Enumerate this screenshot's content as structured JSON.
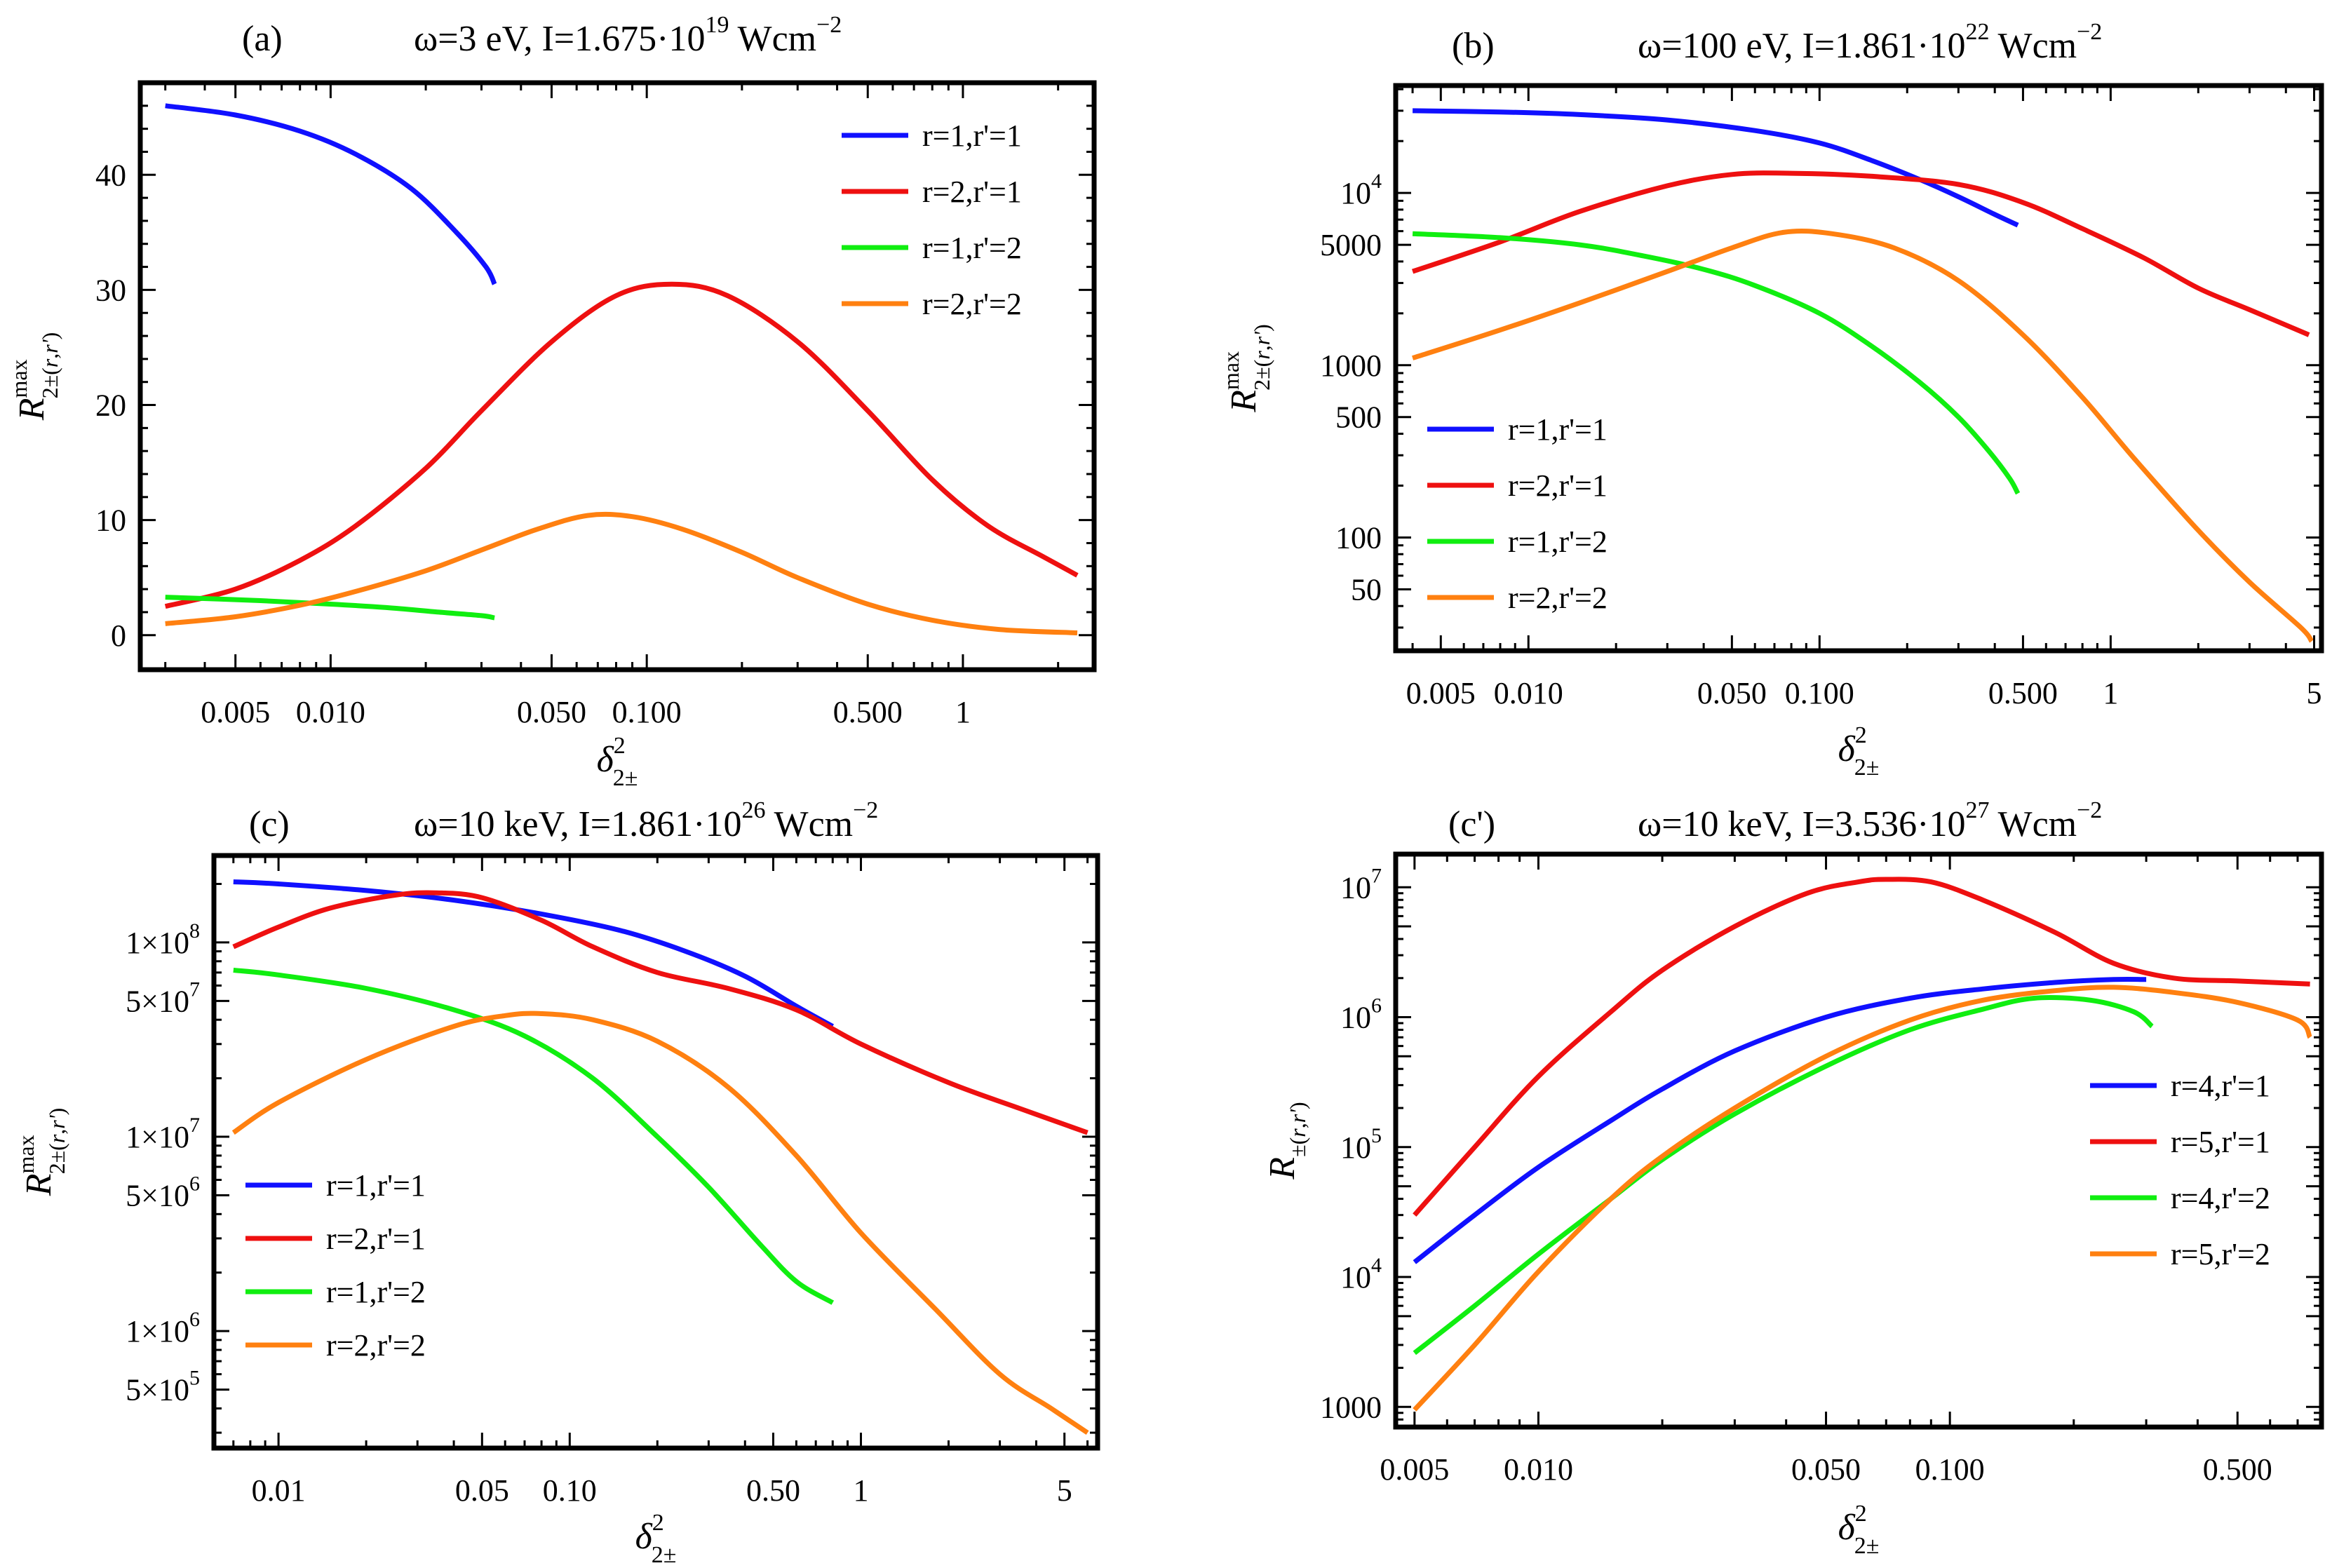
{
  "chart_data": [
    {
      "type": "line",
      "panel": "(a)",
      "title": "ω=3 eV, I=1.675·10^19 Wcm^-2",
      "title_parts": {
        "omega": "ω=3 eV, I=1.675·10",
        "exp": "19",
        "unit": " Wcm",
        "unit_exp": "−2"
      },
      "xlabel": "δ²₂±",
      "ylabel": "R^max_2±(r,r')",
      "xscale": "log",
      "yscale": "linear",
      "xlim": [
        0.0025,
        2.6
      ],
      "ylim": [
        -3,
        48
      ],
      "xticks": [
        {
          "v": 0.005,
          "label": "0.005"
        },
        {
          "v": 0.01,
          "label": "0.010"
        },
        {
          "v": 0.05,
          "label": "0.050"
        },
        {
          "v": 0.1,
          "label": "0.100"
        },
        {
          "v": 0.5,
          "label": "0.500"
        },
        {
          "v": 1,
          "label": "1"
        }
      ],
      "yticks": [
        {
          "v": 0,
          "label": "0"
        },
        {
          "v": 10,
          "label": "10"
        },
        {
          "v": 20,
          "label": "20"
        },
        {
          "v": 30,
          "label": "30"
        },
        {
          "v": 40,
          "label": "40"
        }
      ],
      "legend_position": "top-right",
      "series": [
        {
          "name": "r=1,r'=1",
          "color": "#1010ff",
          "x": [
            0.003,
            0.005,
            0.008,
            0.012,
            0.018,
            0.025,
            0.031,
            0.033
          ],
          "y": [
            46,
            45.2,
            43.8,
            41.8,
            38.8,
            35.0,
            32.0,
            30.5
          ]
        },
        {
          "name": "r=2,r'=1",
          "color": "#ee1010",
          "x": [
            0.003,
            0.005,
            0.008,
            0.012,
            0.02,
            0.03,
            0.05,
            0.08,
            0.12,
            0.18,
            0.3,
            0.5,
            0.8,
            1.2,
            1.8,
            2.3
          ],
          "y": [
            2.5,
            4.0,
            6.5,
            9.5,
            14.5,
            19.5,
            25.5,
            29.5,
            30.5,
            29.5,
            25.5,
            19.5,
            13.5,
            9.5,
            6.8,
            5.2
          ]
        },
        {
          "name": "r=1,r'=2",
          "color": "#10ee10",
          "x": [
            0.003,
            0.006,
            0.01,
            0.015,
            0.022,
            0.03,
            0.033
          ],
          "y": [
            3.3,
            3.0,
            2.7,
            2.4,
            2.0,
            1.7,
            1.5
          ]
        },
        {
          "name": "r=2,r'=2",
          "color": "#ff8010",
          "x": [
            0.003,
            0.005,
            0.008,
            0.012,
            0.02,
            0.03,
            0.045,
            0.065,
            0.09,
            0.13,
            0.2,
            0.3,
            0.5,
            0.8,
            1.3,
            2.3
          ],
          "y": [
            1.0,
            1.6,
            2.6,
            3.8,
            5.6,
            7.4,
            9.2,
            10.4,
            10.3,
            9.2,
            7.2,
            5.0,
            2.7,
            1.3,
            0.5,
            0.2
          ]
        }
      ]
    },
    {
      "type": "line",
      "panel": "(b)",
      "title": "ω=100 eV, I=1.861·10^22 Wcm^-2",
      "title_parts": {
        "omega": "ω=100 eV, I=1.861·10",
        "exp": "22",
        "unit": " Wcm",
        "unit_exp": "−2"
      },
      "xlabel": "δ²₂±",
      "ylabel": "R^max_2±(r,r')",
      "xscale": "log",
      "yscale": "log",
      "xlim": [
        0.0035,
        5.3
      ],
      "ylim": [
        22,
        42000
      ],
      "xticks": [
        {
          "v": 0.005,
          "label": "0.005"
        },
        {
          "v": 0.01,
          "label": "0.010"
        },
        {
          "v": 0.05,
          "label": "0.050"
        },
        {
          "v": 0.1,
          "label": "0.100"
        },
        {
          "v": 0.5,
          "label": "0.500"
        },
        {
          "v": 1,
          "label": "1"
        },
        {
          "v": 5,
          "label": "5"
        }
      ],
      "yticks": [
        {
          "v": 50,
          "label": "50"
        },
        {
          "v": 100,
          "label": "100"
        },
        {
          "v": 500,
          "label": "500"
        },
        {
          "v": 1000,
          "label": "1000"
        },
        {
          "v": 5000,
          "label": "5000"
        },
        {
          "v": 10000,
          "label": "10",
          "exp": "4"
        }
      ],
      "legend_position": "bottom-left",
      "series": [
        {
          "name": "r=1,r'=1",
          "color": "#1010ff",
          "x": [
            0.004,
            0.008,
            0.015,
            0.03,
            0.06,
            0.1,
            0.15,
            0.22,
            0.3,
            0.4,
            0.48
          ],
          "y": [
            30000,
            29500,
            28500,
            26500,
            23000,
            19500,
            15500,
            12000,
            9500,
            7500,
            6500
          ]
        },
        {
          "name": "r=2,r'=1",
          "color": "#ee1010",
          "x": [
            0.004,
            0.008,
            0.015,
            0.03,
            0.05,
            0.08,
            0.15,
            0.3,
            0.5,
            0.8,
            1.3,
            2,
            3,
            4.8
          ],
          "y": [
            3500,
            5200,
            7800,
            11000,
            12800,
            13000,
            12500,
            11200,
            8800,
            6200,
            4200,
            2800,
            2100,
            1500
          ]
        },
        {
          "name": "r=1,r'=2",
          "color": "#10ee10",
          "x": [
            0.004,
            0.008,
            0.015,
            0.025,
            0.04,
            0.06,
            0.1,
            0.15,
            0.22,
            0.3,
            0.38,
            0.45,
            0.48
          ],
          "y": [
            5800,
            5500,
            5000,
            4300,
            3600,
            2900,
            2000,
            1300,
            800,
            500,
            320,
            220,
            180
          ]
        },
        {
          "name": "r=2,r'=2",
          "color": "#ff8010",
          "x": [
            0.004,
            0.008,
            0.015,
            0.03,
            0.05,
            0.075,
            0.11,
            0.18,
            0.3,
            0.5,
            0.8,
            1.2,
            2,
            3,
            4.5,
            4.9
          ],
          "y": [
            1100,
            1600,
            2300,
            3500,
            4800,
            5900,
            5800,
            4800,
            3100,
            1500,
            650,
            290,
            110,
            55,
            30,
            25
          ]
        }
      ]
    },
    {
      "type": "line",
      "panel": "(c)",
      "title": "ω=10 keV, I=1.861·10^26 Wcm^-2",
      "title_parts": {
        "omega": "ω=10 keV, I=1.861·10",
        "exp": "26",
        "unit": " Wcm",
        "unit_exp": "−2"
      },
      "xlabel": "δ²₂±",
      "ylabel": "R^max_2±(r,r')",
      "xscale": "log",
      "yscale": "log",
      "xlim": [
        0.006,
        6.5
      ],
      "ylim": [
        250000,
        280000000
      ],
      "xticks": [
        {
          "v": 0.01,
          "label": "0.01"
        },
        {
          "v": 0.05,
          "label": "0.05"
        },
        {
          "v": 0.1,
          "label": "0.10"
        },
        {
          "v": 0.5,
          "label": "0.50"
        },
        {
          "v": 1,
          "label": "1"
        },
        {
          "v": 5,
          "label": "5"
        }
      ],
      "yticks": [
        {
          "v": 500000,
          "label": "5×10",
          "exp": "5"
        },
        {
          "v": 1000000,
          "label": "1×10",
          "exp": "6"
        },
        {
          "v": 5000000,
          "label": "5×10",
          "exp": "6"
        },
        {
          "v": 10000000,
          "label": "1×10",
          "exp": "7"
        },
        {
          "v": 50000000,
          "label": "5×10",
          "exp": "7"
        },
        {
          "v": 100000000,
          "label": "1×10",
          "exp": "8"
        }
      ],
      "legend_position": "bottom-left",
      "series": [
        {
          "name": "r=1,r'=1",
          "color": "#1010ff",
          "x": [
            0.007,
            0.01,
            0.02,
            0.04,
            0.08,
            0.15,
            0.25,
            0.4,
            0.6,
            0.8
          ],
          "y": [
            205000000,
            200000000,
            185000000,
            165000000,
            140000000,
            115000000,
            90000000,
            67000000,
            47000000,
            37000000
          ]
        },
        {
          "name": "r=2,r'=1",
          "color": "#ee1010",
          "x": [
            0.007,
            0.01,
            0.015,
            0.025,
            0.035,
            0.05,
            0.08,
            0.12,
            0.2,
            0.35,
            0.6,
            1,
            2,
            3.5,
            6
          ],
          "y": [
            95000000,
            120000000,
            150000000,
            175000000,
            180000000,
            170000000,
            130000000,
            95000000,
            70000000,
            58000000,
            45000000,
            30000000,
            19000000,
            14000000,
            10500000
          ]
        },
        {
          "name": "r=1,r'=2",
          "color": "#10ee10",
          "x": [
            0.007,
            0.01,
            0.02,
            0.04,
            0.07,
            0.12,
            0.2,
            0.3,
            0.45,
            0.6,
            0.8
          ],
          "y": [
            72000000,
            68000000,
            58000000,
            45000000,
            33000000,
            20000000,
            10000000,
            5500000,
            2800000,
            1800000,
            1400000
          ]
        },
        {
          "name": "r=2,r'=2",
          "color": "#ff8010",
          "x": [
            0.007,
            0.01,
            0.02,
            0.04,
            0.06,
            0.08,
            0.12,
            0.2,
            0.35,
            0.6,
            1,
            1.8,
            3,
            4.5,
            6
          ],
          "y": [
            10500000,
            15000000,
            25000000,
            37000000,
            42000000,
            43000000,
            40000000,
            31000000,
            18000000,
            8000000,
            3200000,
            1300000,
            600000,
            400000,
            300000
          ]
        }
      ]
    },
    {
      "type": "line",
      "panel": "(c')",
      "title": "ω=10 keV, I=3.536·10^27 Wcm^-2",
      "title_parts": {
        "omega": "ω=10 keV, I=3.536·10",
        "exp": "27",
        "unit": " Wcm",
        "unit_exp": "−2"
      },
      "xlabel": "δ²₂±",
      "ylabel": "R±(r,r')",
      "xscale": "log",
      "yscale": "log",
      "xlim": [
        0.0045,
        0.8
      ],
      "ylim": [
        700,
        18000000
      ],
      "xticks": [
        {
          "v": 0.005,
          "label": "0.005"
        },
        {
          "v": 0.01,
          "label": "0.010"
        },
        {
          "v": 0.05,
          "label": "0.050"
        },
        {
          "v": 0.1,
          "label": "0.100"
        },
        {
          "v": 0.5,
          "label": "0.500"
        }
      ],
      "yticks": [
        {
          "v": 1000,
          "label": "1000"
        },
        {
          "v": 10000,
          "label": "10",
          "exp": "4"
        },
        {
          "v": 100000,
          "label": "10",
          "exp": "5"
        },
        {
          "v": 1000000,
          "label": "10",
          "exp": "6"
        },
        {
          "v": 10000000,
          "label": "10",
          "exp": "7"
        }
      ],
      "legend_position": "right",
      "series": [
        {
          "name": "r=4,r'=1",
          "color": "#1010ff",
          "x": [
            0.005,
            0.007,
            0.01,
            0.015,
            0.02,
            0.03,
            0.05,
            0.08,
            0.12,
            0.18,
            0.25,
            0.3
          ],
          "y": [
            13000,
            30000,
            70000,
            160000,
            280000,
            550000,
            1000000,
            1400000,
            1650000,
            1850000,
            1950000,
            1950000
          ]
        },
        {
          "name": "r=5,r'=1",
          "color": "#ee1010",
          "x": [
            0.005,
            0.007,
            0.01,
            0.015,
            0.02,
            0.03,
            0.045,
            0.06,
            0.07,
            0.09,
            0.12,
            0.18,
            0.25,
            0.35,
            0.5,
            0.75
          ],
          "y": [
            30000,
            100000,
            350000,
            1100000,
            2300000,
            5000000,
            9000000,
            11000000,
            11500000,
            11000000,
            8000000,
            4500000,
            2600000,
            2000000,
            1900000,
            1800000
          ]
        },
        {
          "name": "r=4,r'=2",
          "color": "#10ee10",
          "x": [
            0.005,
            0.007,
            0.01,
            0.015,
            0.02,
            0.03,
            0.05,
            0.08,
            0.12,
            0.16,
            0.22,
            0.28,
            0.31
          ],
          "y": [
            2600,
            6000,
            15000,
            40000,
            80000,
            180000,
            420000,
            800000,
            1150000,
            1400000,
            1350000,
            1100000,
            850000
          ]
        },
        {
          "name": "r=5,r'=2",
          "color": "#ff8010",
          "x": [
            0.005,
            0.007,
            0.01,
            0.015,
            0.02,
            0.03,
            0.05,
            0.08,
            0.12,
            0.18,
            0.25,
            0.35,
            0.5,
            0.7,
            0.75
          ],
          "y": [
            950,
            3000,
            11000,
            40000,
            85000,
            200000,
            500000,
            950000,
            1350000,
            1600000,
            1700000,
            1550000,
            1300000,
            950000,
            700000
          ]
        }
      ]
    }
  ]
}
